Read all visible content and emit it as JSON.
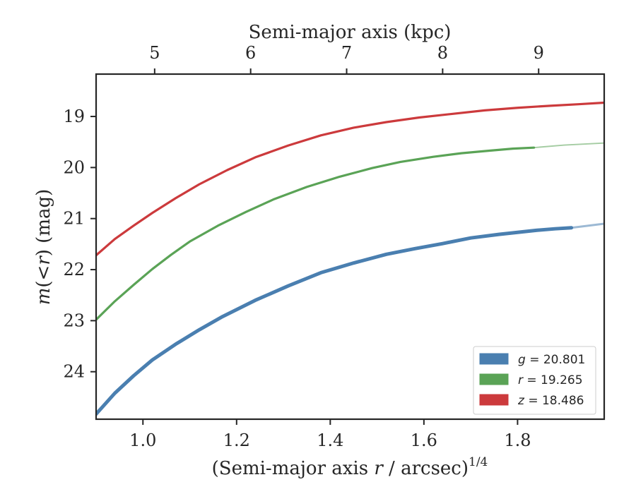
{
  "chart_data": {
    "type": "line",
    "xlabel": "(Semi-major axis r / arcsec)^1/4",
    "xlabel_parts": {
      "pre": "(Semi-major axis ",
      "var": "r",
      "post": " / arcsec)",
      "exp": "1/4"
    },
    "ylabel": "m(<r) (mag)",
    "ylabel_parts": {
      "var": "m",
      "mid": "(<",
      "var2": "r",
      "post": ") (mag)"
    },
    "top_xlabel": "Semi-major axis (kpc)",
    "xlim": [
      0.9,
      1.985
    ],
    "ylim": [
      24.93,
      18.17
    ],
    "y_inverted": true,
    "xticks": [
      1.0,
      1.2,
      1.4,
      1.6,
      1.8
    ],
    "xtick_labels": [
      "1.0",
      "1.2",
      "1.4",
      "1.6",
      "1.8"
    ],
    "yticks": [
      19,
      20,
      21,
      22,
      23,
      24
    ],
    "ytick_labels": [
      "19",
      "20",
      "21",
      "22",
      "23",
      "24"
    ],
    "top_ticks_x": [
      1.025,
      1.23,
      1.435,
      1.64,
      1.845
    ],
    "top_tick_labels": [
      "5",
      "6",
      "7",
      "8",
      "9"
    ],
    "legend_position": "lower right",
    "series": [
      {
        "name": "g = 20.801",
        "legend_var": "g",
        "legend_value": "= 20.801",
        "color": "#4a7fb0",
        "x": [
          0.9,
          0.94,
          0.98,
          1.02,
          1.07,
          1.12,
          1.17,
          1.24,
          1.31,
          1.38,
          1.45,
          1.52,
          1.58,
          1.64,
          1.7,
          1.76,
          1.8,
          1.84,
          1.88,
          1.915
        ],
        "y": [
          24.83,
          24.42,
          24.08,
          23.77,
          23.46,
          23.18,
          22.92,
          22.6,
          22.32,
          22.06,
          21.87,
          21.7,
          21.59,
          21.49,
          21.38,
          21.31,
          21.27,
          21.23,
          21.2,
          21.18
        ],
        "faint_x": [
          1.915,
          1.95,
          1.985
        ],
        "faint_y": [
          21.18,
          21.14,
          21.1
        ]
      },
      {
        "name": "r = 19.265",
        "legend_var": "r",
        "legend_value": "= 19.265",
        "color": "#5aa356",
        "x": [
          0.9,
          0.94,
          0.98,
          1.02,
          1.06,
          1.1,
          1.16,
          1.22,
          1.28,
          1.35,
          1.42,
          1.49,
          1.55,
          1.62,
          1.68,
          1.74,
          1.79,
          1.835
        ],
        "y": [
          22.98,
          22.62,
          22.3,
          21.99,
          21.71,
          21.45,
          21.14,
          20.87,
          20.62,
          20.38,
          20.18,
          20.01,
          19.89,
          19.79,
          19.72,
          19.67,
          19.63,
          19.61
        ],
        "faint_x": [
          1.835,
          1.9,
          1.985
        ],
        "faint_y": [
          19.61,
          19.56,
          19.52
        ]
      },
      {
        "name": "z = 18.486",
        "legend_var": "z",
        "legend_value": "= 18.486",
        "color": "#cc3a3c",
        "x": [
          0.9,
          0.94,
          0.98,
          1.02,
          1.07,
          1.12,
          1.18,
          1.24,
          1.31,
          1.38,
          1.45,
          1.52,
          1.59,
          1.66,
          1.73,
          1.8,
          1.87,
          1.93,
          1.985
        ],
        "y": [
          21.72,
          21.4,
          21.14,
          20.89,
          20.6,
          20.33,
          20.05,
          19.8,
          19.57,
          19.37,
          19.22,
          19.11,
          19.02,
          18.95,
          18.88,
          18.83,
          18.79,
          18.76,
          18.73
        ],
        "faint_x": [],
        "faint_y": []
      }
    ]
  }
}
